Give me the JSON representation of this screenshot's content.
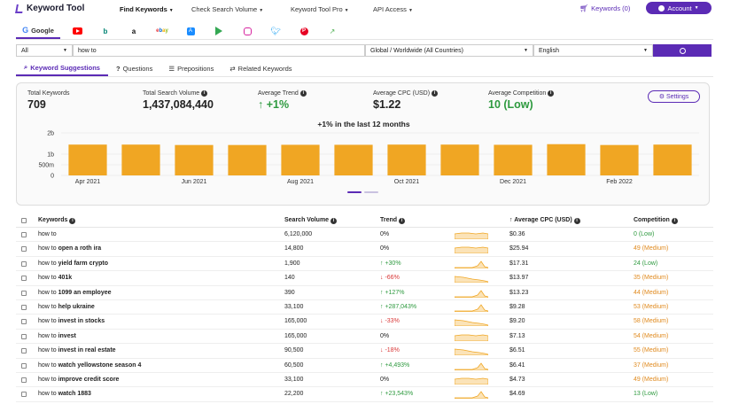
{
  "nav": {
    "logo": "Keyword Tool",
    "menu": [
      {
        "label": "Find Keywords",
        "x": 135
      },
      {
        "label": "Check Search Volume",
        "x": 216
      },
      {
        "label": "Keyword Tool Pro",
        "x": 328
      },
      {
        "label": "API Access",
        "x": 421
      }
    ],
    "keywords_link": "Keywords (0)",
    "account": "Account"
  },
  "platforms": [
    {
      "name": "google",
      "label": "Google",
      "color": "#4285F4"
    },
    {
      "name": "youtube",
      "color": "#ff0000"
    },
    {
      "name": "bing",
      "color": "#008373"
    },
    {
      "name": "amazon",
      "color": "#111111"
    },
    {
      "name": "ebay",
      "color": "#e53238"
    },
    {
      "name": "app-store",
      "color": "#1a8cff"
    },
    {
      "name": "play-store",
      "color": "#34a853"
    },
    {
      "name": "instagram",
      "color": "#d6249f"
    },
    {
      "name": "twitter",
      "color": "#1da1f2"
    },
    {
      "name": "pinterest",
      "color": "#e60023"
    },
    {
      "name": "trends",
      "color": "#4caf50"
    }
  ],
  "search": {
    "type_select": "All",
    "query": "how to",
    "location": "Global / Worldwide (All Countries)",
    "language": "English"
  },
  "subtabs": [
    "Keyword Suggestions",
    "Questions",
    "Prepositions",
    "Related Keywords"
  ],
  "stats": {
    "total_keywords_label": "Total Keywords",
    "total_keywords": "709",
    "total_volume_label": "Total Search Volume",
    "total_volume": "1,437,084,440",
    "avg_trend_label": "Average Trend",
    "avg_trend": "+1%",
    "avg_cpc_label": "Average CPC (USD)",
    "avg_cpc": "$1.22",
    "avg_comp_label": "Average Competition",
    "avg_comp": "10 (Low)",
    "settings": "Settings"
  },
  "chart_data": {
    "type": "bar",
    "title": "+1% in the last 12 months",
    "y_ticks": [
      "0",
      "500m",
      "1b",
      "2b"
    ],
    "x_ticks": [
      "Apr 2021",
      "Jun 2021",
      "Aug 2021",
      "Oct 2021",
      "Dec 2021",
      "Feb 2022"
    ],
    "categories": [
      "Apr 2021",
      "May 2021",
      "Jun 2021",
      "Jul 2021",
      "Aug 2021",
      "Sep 2021",
      "Oct 2021",
      "Nov 2021",
      "Dec 2021",
      "Jan 2022",
      "Feb 2022",
      "Mar 2022"
    ],
    "values": [
      1.45,
      1.45,
      1.43,
      1.43,
      1.44,
      1.44,
      1.45,
      1.45,
      1.44,
      1.47,
      1.43,
      1.45
    ],
    "ylim": [
      0,
      2
    ],
    "bar_color": "#f0a623"
  },
  "table": {
    "headers": {
      "keywords": "Keywords",
      "volume": "Search Volume",
      "trend": "Trend",
      "cpc": "Average CPC (USD)",
      "competition": "Competition"
    },
    "rows": [
      {
        "prefix": "how to",
        "bold": "",
        "volume": "6,120,000",
        "trend": "0%",
        "dir": "flat",
        "cpc": "$0.36",
        "comp": "0 (Low)",
        "level": "low"
      },
      {
        "prefix": "how to ",
        "bold": "open a roth ira",
        "volume": "14,800",
        "trend": "0%",
        "dir": "flat",
        "cpc": "$25.94",
        "comp": "49 (Medium)",
        "level": "med"
      },
      {
        "prefix": "how to ",
        "bold": "yield farm crypto",
        "volume": "1,900",
        "trend": "+30%",
        "dir": "up",
        "cpc": "$17.31",
        "comp": "24 (Low)",
        "level": "low"
      },
      {
        "prefix": "how to ",
        "bold": "401k",
        "volume": "140",
        "trend": "-66%",
        "dir": "down",
        "cpc": "$13.97",
        "comp": "35 (Medium)",
        "level": "med"
      },
      {
        "prefix": "how to ",
        "bold": "1099 an employee",
        "volume": "390",
        "trend": "+127%",
        "dir": "up",
        "cpc": "$13.23",
        "comp": "44 (Medium)",
        "level": "med"
      },
      {
        "prefix": "how to ",
        "bold": "help ukraine",
        "volume": "33,100",
        "trend": "+287,043%",
        "dir": "up",
        "cpc": "$9.28",
        "comp": "53 (Medium)",
        "level": "med"
      },
      {
        "prefix": "how to ",
        "bold": "invest in stocks",
        "volume": "165,000",
        "trend": "-33%",
        "dir": "down",
        "cpc": "$9.20",
        "comp": "58 (Medium)",
        "level": "med"
      },
      {
        "prefix": "how to ",
        "bold": "invest",
        "volume": "165,000",
        "trend": "0%",
        "dir": "flat",
        "cpc": "$7.13",
        "comp": "54 (Medium)",
        "level": "med"
      },
      {
        "prefix": "how to ",
        "bold": "invest in real estate",
        "volume": "90,500",
        "trend": "-18%",
        "dir": "down",
        "cpc": "$6.51",
        "comp": "55 (Medium)",
        "level": "med"
      },
      {
        "prefix": "how to ",
        "bold": "watch yellowstone season 4",
        "volume": "60,500",
        "trend": "+4,493%",
        "dir": "up",
        "cpc": "$6.41",
        "comp": "37 (Medium)",
        "level": "med"
      },
      {
        "prefix": "how to ",
        "bold": "improve credit score",
        "volume": "33,100",
        "trend": "0%",
        "dir": "flat",
        "cpc": "$4.73",
        "comp": "49 (Medium)",
        "level": "med"
      },
      {
        "prefix": "how to ",
        "bold": "watch 1883",
        "volume": "22,200",
        "trend": "+23,543%",
        "dir": "up",
        "cpc": "$4.69",
        "comp": "13 (Low)",
        "level": "low"
      }
    ]
  }
}
